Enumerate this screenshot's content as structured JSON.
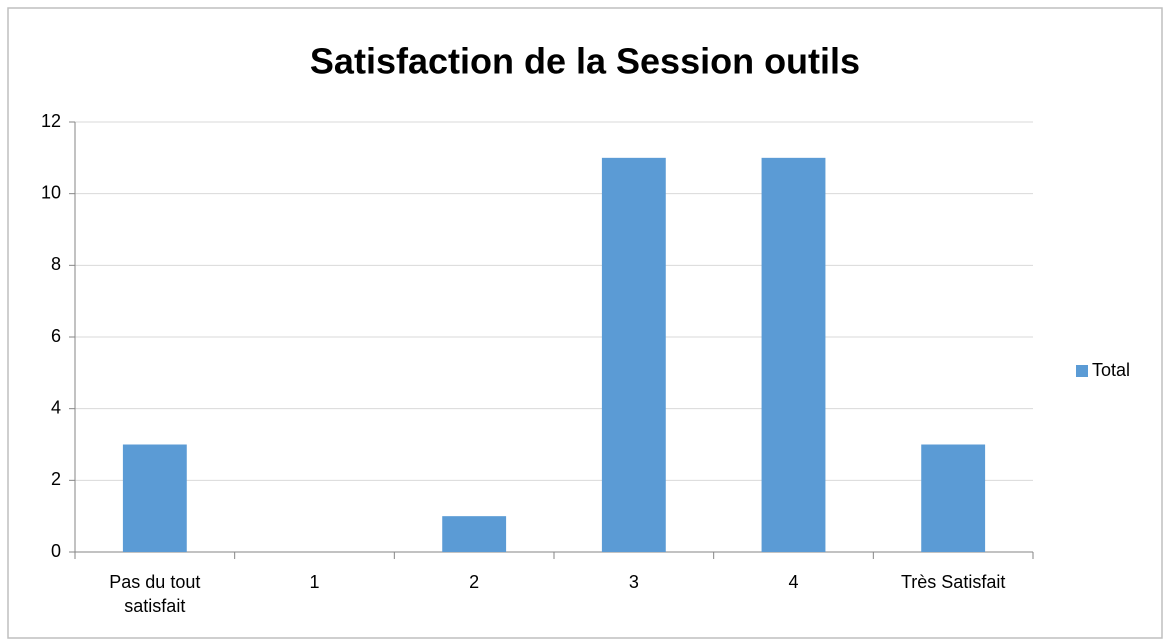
{
  "chart_data": {
    "type": "bar",
    "title": "Satisfaction de la Session outils",
    "categories": [
      "Pas du tout satisfait",
      "1",
      "2",
      "3",
      "4",
      "Très Satisfait"
    ],
    "series": [
      {
        "name": "Total",
        "color": "#5b9bd5",
        "values": [
          3,
          0,
          1,
          11,
          11,
          3
        ]
      }
    ],
    "ylim": [
      0,
      12
    ],
    "yticks": [
      0,
      2,
      4,
      6,
      8,
      10,
      12
    ],
    "grid": true,
    "legend": "right"
  }
}
